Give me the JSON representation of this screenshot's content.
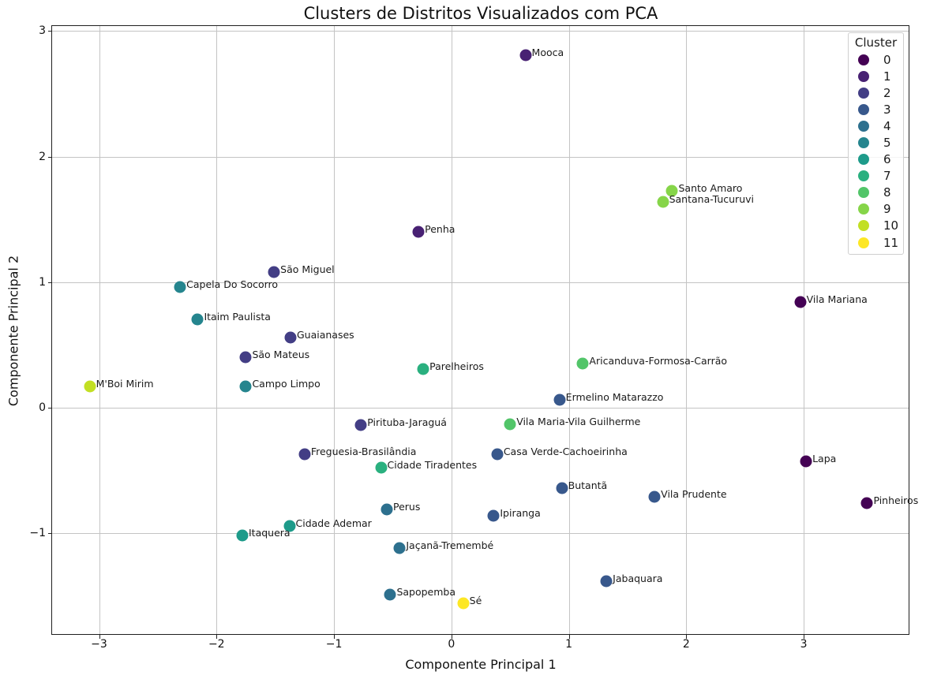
{
  "chart_data": {
    "type": "scatter",
    "title": "Clusters de Distritos Visualizados com PCA",
    "xlabel": "Componente Principal 1",
    "ylabel": "Componente Principal 2",
    "xlim": [
      -3.4,
      3.9
    ],
    "ylim": [
      -1.81,
      3.04
    ],
    "grid": true,
    "xticks": [
      {
        "value": -3,
        "label": "−3"
      },
      {
        "value": -2,
        "label": "−2"
      },
      {
        "value": -1,
        "label": "−1"
      },
      {
        "value": 0,
        "label": "0"
      },
      {
        "value": 1,
        "label": "1"
      },
      {
        "value": 2,
        "label": "2"
      },
      {
        "value": 3,
        "label": "3"
      }
    ],
    "yticks": [
      {
        "value": -1,
        "label": "−1"
      },
      {
        "value": 0,
        "label": "0"
      },
      {
        "value": 1,
        "label": "1"
      },
      {
        "value": 2,
        "label": "2"
      },
      {
        "value": 3,
        "label": "3"
      }
    ],
    "legend": {
      "title": "Cluster",
      "position": "upper right",
      "entries": [
        {
          "label": "0",
          "color": "#440154"
        },
        {
          "label": "1",
          "color": "#482173"
        },
        {
          "label": "2",
          "color": "#433e85"
        },
        {
          "label": "3",
          "color": "#38588c"
        },
        {
          "label": "4",
          "color": "#2d708e"
        },
        {
          "label": "5",
          "color": "#25858e"
        },
        {
          "label": "6",
          "color": "#1e9b8a"
        },
        {
          "label": "7",
          "color": "#2ab07f"
        },
        {
          "label": "8",
          "color": "#52c569"
        },
        {
          "label": "9",
          "color": "#86d549"
        },
        {
          "label": "10",
          "color": "#c2df23"
        },
        {
          "label": "11",
          "color": "#fde725"
        }
      ]
    },
    "points": [
      {
        "label": "Mooca",
        "x": 0.63,
        "y": 2.81,
        "cluster": 1
      },
      {
        "label": "Santo Amaro",
        "x": 1.88,
        "y": 1.73,
        "cluster": 9
      },
      {
        "label": "Santana-Tucuruvi",
        "x": 1.8,
        "y": 1.64,
        "cluster": 9
      },
      {
        "label": "Penha",
        "x": -0.28,
        "y": 1.4,
        "cluster": 1
      },
      {
        "label": "São Miguel",
        "x": -1.51,
        "y": 1.08,
        "cluster": 2
      },
      {
        "label": "Capela Do Socorro",
        "x": -2.31,
        "y": 0.96,
        "cluster": 5
      },
      {
        "label": "Vila Mariana",
        "x": 2.97,
        "y": 0.84,
        "cluster": 0
      },
      {
        "label": "Itaim Paulista",
        "x": -2.16,
        "y": 0.7,
        "cluster": 5
      },
      {
        "label": "Guaianases",
        "x": -1.37,
        "y": 0.56,
        "cluster": 2
      },
      {
        "label": "São Mateus",
        "x": -1.75,
        "y": 0.4,
        "cluster": 2
      },
      {
        "label": "Aricanduva-Formosa-Carrão",
        "x": 1.12,
        "y": 0.35,
        "cluster": 8
      },
      {
        "label": "Parelheiros",
        "x": -0.24,
        "y": 0.31,
        "cluster": 7
      },
      {
        "label": "M'Boi Mirim",
        "x": -3.08,
        "y": 0.17,
        "cluster": 10
      },
      {
        "label": "Campo Limpo",
        "x": -1.75,
        "y": 0.17,
        "cluster": 5
      },
      {
        "label": "Ermelino Matarazzo",
        "x": 0.92,
        "y": 0.06,
        "cluster": 3
      },
      {
        "label": "Vila Maria-Vila Guilherme",
        "x": 0.5,
        "y": -0.13,
        "cluster": 8
      },
      {
        "label": "Pirituba-Jaraguá",
        "x": -0.77,
        "y": -0.14,
        "cluster": 2
      },
      {
        "label": "Freguesia-Brasilândia",
        "x": -1.25,
        "y": -0.37,
        "cluster": 2
      },
      {
        "label": "Casa Verde-Cachoeirinha",
        "x": 0.39,
        "y": -0.37,
        "cluster": 3
      },
      {
        "label": "Lapa",
        "x": 3.02,
        "y": -0.43,
        "cluster": 0
      },
      {
        "label": "Cidade Tiradentes",
        "x": -0.6,
        "y": -0.48,
        "cluster": 7
      },
      {
        "label": "Butantã",
        "x": 0.94,
        "y": -0.64,
        "cluster": 3
      },
      {
        "label": "Vila Prudente",
        "x": 1.73,
        "y": -0.71,
        "cluster": 3
      },
      {
        "label": "Pinheiros",
        "x": 3.54,
        "y": -0.76,
        "cluster": 0
      },
      {
        "label": "Perus",
        "x": -0.55,
        "y": -0.81,
        "cluster": 4
      },
      {
        "label": "Ipiranga",
        "x": 0.36,
        "y": -0.86,
        "cluster": 3
      },
      {
        "label": "Cidade Ademar",
        "x": -1.38,
        "y": -0.94,
        "cluster": 6
      },
      {
        "label": "Itaquera",
        "x": -1.78,
        "y": -1.02,
        "cluster": 6
      },
      {
        "label": "Jaçanã-Tremembé",
        "x": -0.44,
        "y": -1.12,
        "cluster": 4
      },
      {
        "label": "Jabaquara",
        "x": 1.32,
        "y": -1.38,
        "cluster": 3
      },
      {
        "label": "Sapopemba",
        "x": -0.52,
        "y": -1.49,
        "cluster": 4
      },
      {
        "label": "Sé",
        "x": 0.1,
        "y": -1.56,
        "cluster": 11
      }
    ]
  }
}
